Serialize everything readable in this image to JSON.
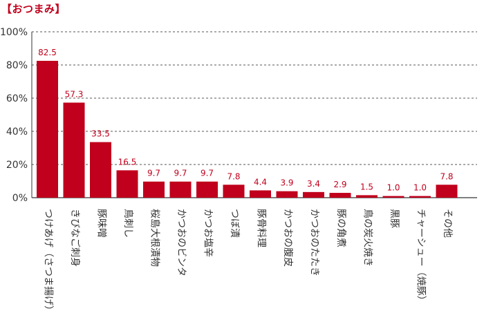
{
  "title": "【おつまみ】",
  "chart_data": {
    "type": "bar",
    "categories": [
      "つけあげ（さつま揚げ）",
      "きびなご刺身",
      "豚味噌",
      "鳥刺し",
      "桜島大根漬物",
      "かつおのビンタ",
      "かつお塩辛",
      "つぼ漬",
      "豚骨料理",
      "かつおの腹皮",
      "かつおのたたき",
      "豚の角煮",
      "鳥の炭火焼き",
      "黒豚",
      "チャーシュー（焼豚）",
      "その他"
    ],
    "values": [
      82.5,
      57.3,
      33.5,
      16.5,
      9.7,
      9.7,
      9.7,
      7.8,
      4.4,
      3.9,
      3.4,
      2.9,
      1.5,
      1.0,
      1.0,
      7.8
    ],
    "value_labels": [
      "82.5",
      "57.3",
      "33.5",
      "16.5",
      "9.7",
      "9.7",
      "9.7",
      "7.8",
      "4.4",
      "3.9",
      "3.4",
      "2.9",
      "1.5",
      "1.0",
      "1.0",
      "7.8"
    ],
    "yticks": [
      "0%",
      "20%",
      "40%",
      "60%",
      "80%",
      "100%"
    ],
    "ylim": [
      0,
      100
    ],
    "grid": "dashed horizontal",
    "bar_color": "#c0001c",
    "title_color": "#c0001c"
  }
}
